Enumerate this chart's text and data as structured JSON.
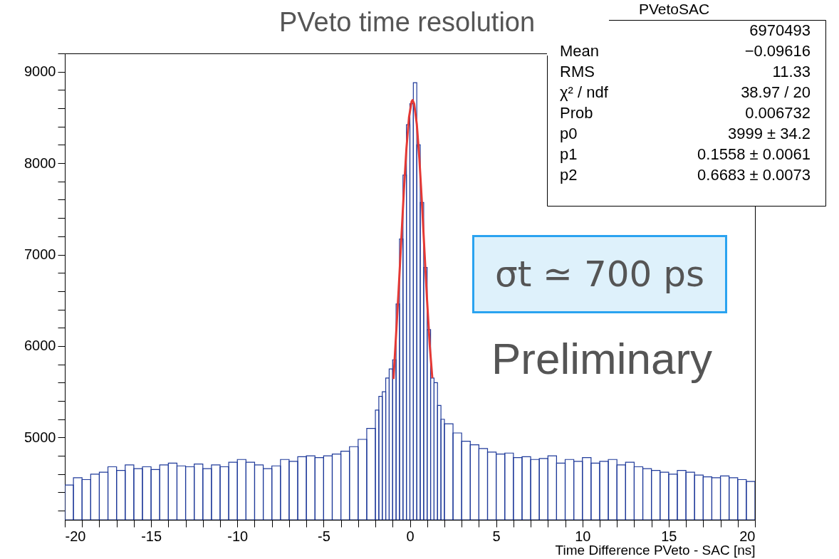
{
  "chart_data": {
    "type": "histogram",
    "title": "PVeto time resolution",
    "xlabel": "Time Difference PVeto - SAC [ns]",
    "bins": [
      -20,
      -19.5,
      -19,
      -18.5,
      -18,
      -17.5,
      -17,
      -16.5,
      -16,
      -15.5,
      -15,
      -14.5,
      -14,
      -13.5,
      -13,
      -12.5,
      -12,
      -11.5,
      -11,
      -10.5,
      -10,
      -9.5,
      -9,
      -8.5,
      -8,
      -7.5,
      -7,
      -6.5,
      -6,
      -5.5,
      -5,
      -4.5,
      -4,
      -3.5,
      -3,
      -2.5,
      -2,
      -1.8,
      -1.6,
      -1.4,
      -1.2,
      -1,
      -0.8,
      -0.6,
      -0.4,
      -0.2,
      0,
      0.2,
      0.4,
      0.6,
      0.8,
      1,
      1.2,
      1.4,
      1.6,
      1.8,
      2,
      2.5,
      3,
      3.5,
      4,
      4.5,
      5,
      5.5,
      6,
      6.5,
      7,
      7.5,
      8,
      8.5,
      9,
      9.5,
      10,
      10.5,
      11,
      11.5,
      12,
      12.5,
      13,
      13.5,
      14,
      14.5,
      15,
      15.5,
      16,
      16.5,
      17,
      17.5,
      18,
      18.5,
      19,
      19.5,
      20
    ],
    "series": [
      {
        "color": "#1f3a9a",
        "values": [
          4480,
          4560,
          4540,
          4600,
          4620,
          4680,
          4640,
          4700,
          4660,
          4680,
          4650,
          4700,
          4720,
          4690,
          4680,
          4710,
          4660,
          4700,
          4680,
          4730,
          4760,
          4730,
          4700,
          4660,
          4690,
          4760,
          4740,
          4790,
          4800,
          4780,
          4800,
          4820,
          4850,
          4900,
          4980,
          5100,
          5300,
          5450,
          5500,
          5650,
          5750,
          5850,
          6460,
          7170,
          7870,
          8420,
          8650,
          8880,
          8200,
          7570,
          6860,
          6180,
          5650,
          5600,
          5350,
          5200,
          5150,
          5050,
          4960,
          4920,
          4880,
          4840,
          4820,
          4830,
          4780,
          4790,
          4760,
          4770,
          4800,
          4720,
          4760,
          4740,
          4780,
          4720,
          4740,
          4760,
          4700,
          4730,
          4680,
          4660,
          4640,
          4620,
          4600,
          4640,
          4620,
          4590,
          4570,
          4560,
          4580,
          4560,
          4540,
          4520
        ]
      },
      {
        "type": "line",
        "color": "#e53935",
        "x": [
          -0.95,
          -0.8,
          -0.65,
          -0.5,
          -0.35,
          -0.2,
          -0.05,
          0.1,
          0.156,
          0.25,
          0.4,
          0.55,
          0.7,
          0.85,
          1,
          1.15,
          1.3
        ],
        "values": [
          5640,
          6126,
          6620,
          7156,
          7692,
          8160,
          8504,
          8674,
          8690,
          8648,
          8428,
          8048,
          7560,
          7020,
          6488,
          6012,
          5650
        ]
      }
    ],
    "xlim": [
      -20,
      20
    ],
    "xticks": [
      -20,
      {
        "value": -19,
        "label": null
      },
      {
        "value": -18,
        "label": null
      },
      {
        "value": -17,
        "label": null
      },
      {
        "value": -16,
        "label": null
      },
      -15,
      {
        "value": -14,
        "label": null
      },
      {
        "value": -13,
        "label": null
      },
      {
        "value": -12,
        "label": null
      },
      {
        "value": -11,
        "label": null
      },
      -10,
      {
        "value": -9,
        "label": null
      },
      {
        "value": -8,
        "label": null
      },
      {
        "value": -7,
        "label": null
      },
      {
        "value": -6,
        "label": null
      },
      -5,
      {
        "value": -4,
        "label": null
      },
      {
        "value": -3,
        "label": null
      },
      {
        "value": -2,
        "label": null
      },
      {
        "value": -1,
        "label": null
      },
      0,
      {
        "value": 1,
        "label": null
      },
      {
        "value": 2,
        "label": null
      },
      {
        "value": 3,
        "label": null
      },
      {
        "value": 4,
        "label": null
      },
      5,
      {
        "value": 6,
        "label": null
      },
      {
        "value": 7,
        "label": null
      },
      {
        "value": 8,
        "label": null
      },
      {
        "value": 9,
        "label": null
      },
      10,
      {
        "value": 11,
        "label": null
      },
      {
        "value": 12,
        "label": null
      },
      {
        "value": 13,
        "label": null
      },
      {
        "value": 14,
        "label": null
      },
      15,
      {
        "value": 16,
        "label": null
      },
      {
        "value": 17,
        "label": null
      },
      {
        "value": 18,
        "label": null
      },
      {
        "value": 19,
        "label": null
      },
      20
    ],
    "ylim": [
      4100,
      9200
    ],
    "yticks": [
      {
        "value": 4200,
        "label": null
      },
      {
        "value": 4400,
        "label": null
      },
      {
        "value": 4600,
        "label": null
      },
      {
        "value": 4800,
        "label": null
      },
      5000,
      {
        "value": 5200,
        "label": null
      },
      {
        "value": 5400,
        "label": null
      },
      {
        "value": 5600,
        "label": null
      },
      {
        "value": 5800,
        "label": null
      },
      6000,
      {
        "value": 6200,
        "label": null
      },
      {
        "value": 6400,
        "label": null
      },
      {
        "value": 6600,
        "label": null
      },
      {
        "value": 6800,
        "label": null
      },
      7000,
      {
        "value": 7200,
        "label": null
      },
      {
        "value": 7400,
        "label": null
      },
      {
        "value": 7600,
        "label": null
      },
      {
        "value": 7800,
        "label": null
      },
      8000,
      {
        "value": 8200,
        "label": null
      },
      {
        "value": 8400,
        "label": null
      },
      {
        "value": 8600,
        "label": null
      },
      {
        "value": 8800,
        "label": null
      },
      9000,
      {
        "value": 9200,
        "label": null
      }
    ],
    "annotations": [
      "PVetoSAC",
      "6970493",
      "Mean",
      "−0.09616",
      "RMS",
      "11.33",
      "χ² / ndf",
      "38.97 / 20",
      "Prob",
      "0.006732",
      "p0",
      "3999 ± 34.2",
      "p1",
      "0.1558 ± 0.0061",
      "p2",
      "0.6683 ± 0.0073",
      "σt ≃ 700 ps",
      "Preliminary"
    ]
  }
}
